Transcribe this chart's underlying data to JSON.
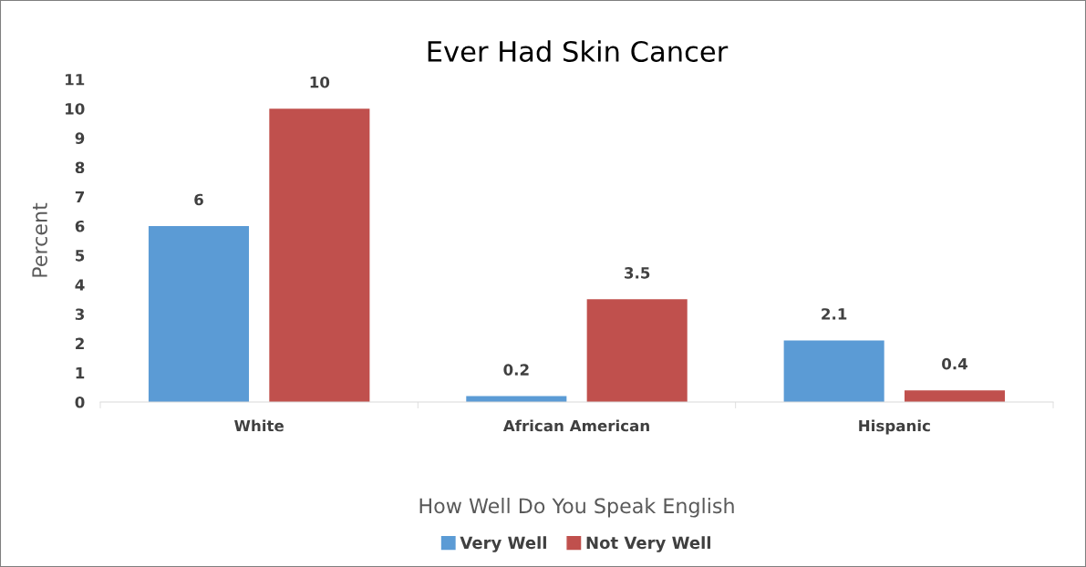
{
  "chart_data": {
    "type": "bar",
    "title": "Ever Had Skin Cancer",
    "xlabel": "How Well Do You Speak English",
    "ylabel": "Percent",
    "categories": [
      "White",
      "African American",
      "Hispanic"
    ],
    "series": [
      {
        "name": "Very Well",
        "color": "#5b9bd5",
        "values": [
          6,
          0.2,
          2.1
        ]
      },
      {
        "name": "Not Very Well",
        "color": "#c0504d",
        "values": [
          10,
          3.5,
          0.4
        ]
      }
    ],
    "ylim": [
      0,
      11
    ],
    "yticks": [
      0,
      1,
      2,
      3,
      4,
      5,
      6,
      7,
      8,
      9,
      10,
      11
    ],
    "data_labels": true,
    "grid": false,
    "legend": "bottom"
  }
}
